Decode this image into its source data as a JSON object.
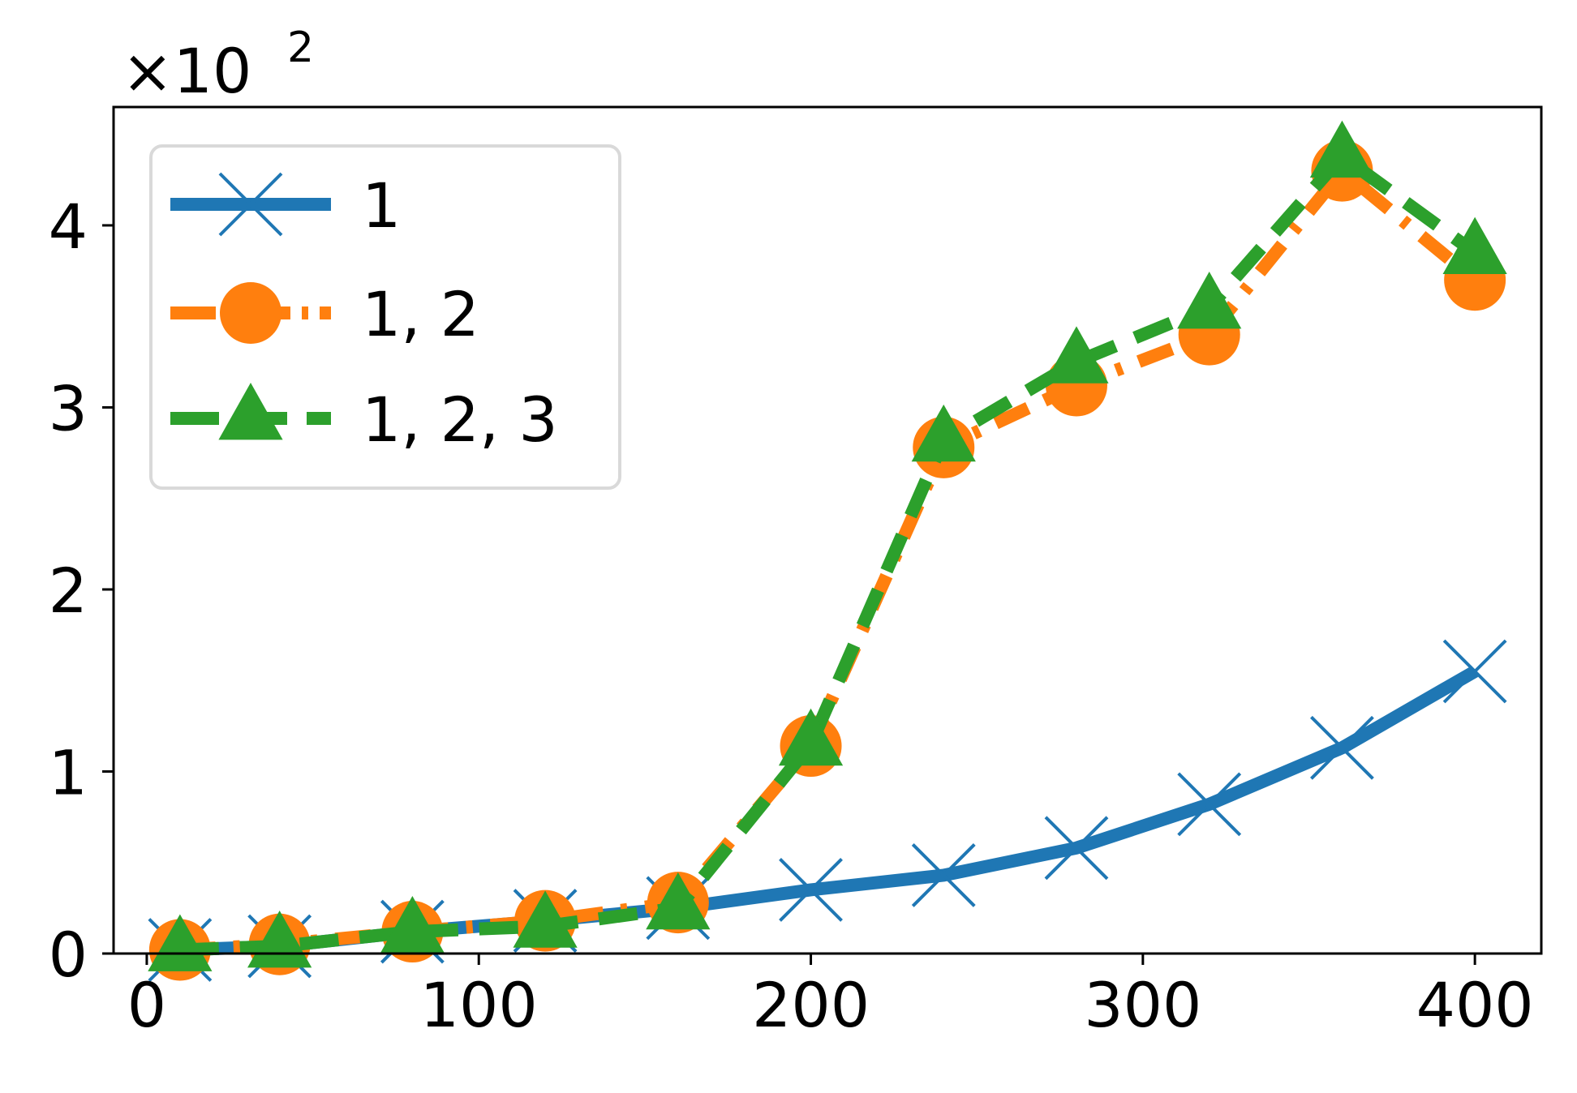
{
  "chart_data": {
    "type": "line",
    "title": "",
    "xlabel": "",
    "ylabel": "",
    "y_multiplier_label": "×10",
    "y_multiplier_exp": "2",
    "xlim": [
      -10,
      420
    ],
    "ylim": [
      0,
      4.65
    ],
    "xticks": [
      0,
      100,
      200,
      300,
      400
    ],
    "xtick_labels": [
      "0",
      "100",
      "200",
      "300",
      "400"
    ],
    "yticks": [
      0,
      1,
      2,
      3,
      4
    ],
    "ytick_labels": [
      "0",
      "1",
      "2",
      "3",
      "4"
    ],
    "grid": false,
    "legend_position": "top-left",
    "colors": {
      "s1": "#1f77b4",
      "s2": "#ff7f0e",
      "s3": "#2ca02c"
    },
    "series": [
      {
        "name": "1",
        "marker": "x",
        "linestyle": "solid",
        "x": [
          10,
          40,
          80,
          120,
          160,
          200,
          240,
          280,
          320,
          360,
          400
        ],
        "y": [
          0.02,
          0.04,
          0.12,
          0.18,
          0.25,
          0.35,
          0.43,
          0.58,
          0.82,
          1.13,
          1.55
        ]
      },
      {
        "name": "1, 2",
        "marker": "o",
        "linestyle": "dashdot",
        "x": [
          10,
          40,
          80,
          120,
          160,
          200,
          240,
          280,
          320,
          360,
          400
        ],
        "y": [
          0.02,
          0.05,
          0.12,
          0.18,
          0.28,
          1.14,
          2.78,
          3.12,
          3.4,
          4.3,
          3.7
        ]
      },
      {
        "name": "1, 2, 3",
        "marker": "^",
        "linestyle": "dashed",
        "x": [
          10,
          40,
          80,
          120,
          160,
          200,
          240,
          280,
          320,
          360,
          400
        ],
        "y": [
          0.02,
          0.04,
          0.12,
          0.15,
          0.25,
          1.15,
          2.82,
          3.25,
          3.55,
          4.38,
          3.85
        ]
      }
    ]
  }
}
